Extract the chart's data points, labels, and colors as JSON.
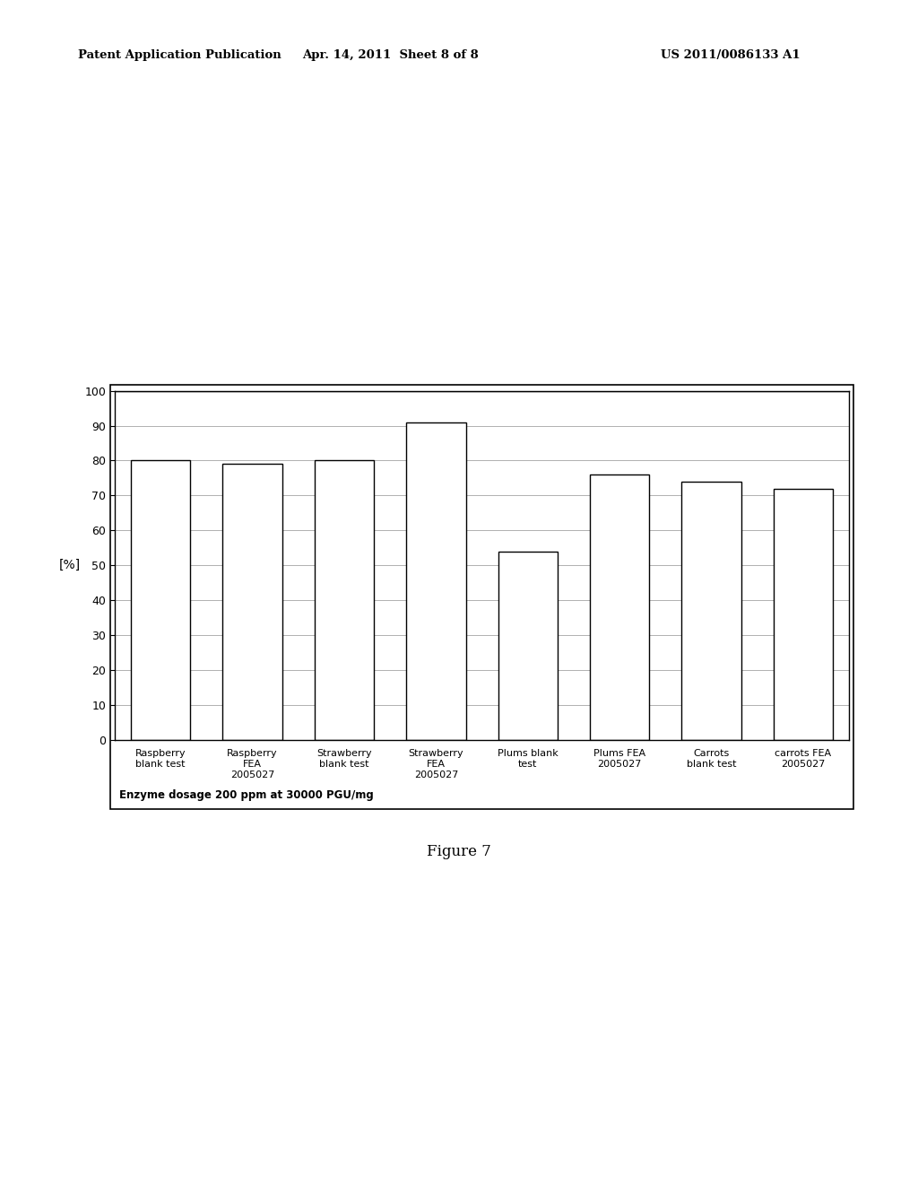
{
  "categories": [
    "Raspberry\nblank test",
    "Raspberry\nFEA\n2005027",
    "Strawberry\nblank test",
    "Strawberry\nFEA\n2005027",
    "Plums blank\ntest",
    "Plums FEA\n2005027",
    "Carrots\nblank test",
    "carrots FEA\n2005027"
  ],
  "values": [
    80,
    79,
    80,
    91,
    54,
    76,
    74,
    72
  ],
  "ylabel": "[%]",
  "ylim": [
    0,
    100
  ],
  "yticks": [
    0,
    10,
    20,
    30,
    40,
    50,
    60,
    70,
    80,
    90,
    100
  ],
  "footnote_bold": "Enzyme dosage 200 ppm at",
  "footnote_normal": " 30000 PGU/mg",
  "footnote_full": "Enzyme dosage 200 ppm at 30000 PGU/mg",
  "figure_label": "Figure 7",
  "header_left": "Patent Application Publication",
  "header_center": "Apr. 14, 2011  Sheet 8 of 8",
  "header_right": "US 2011/0086133 A1",
  "bar_color": "#ffffff",
  "bar_edgecolor": "#000000",
  "grid_color": "#b0b0b0",
  "background_color": "#ffffff"
}
